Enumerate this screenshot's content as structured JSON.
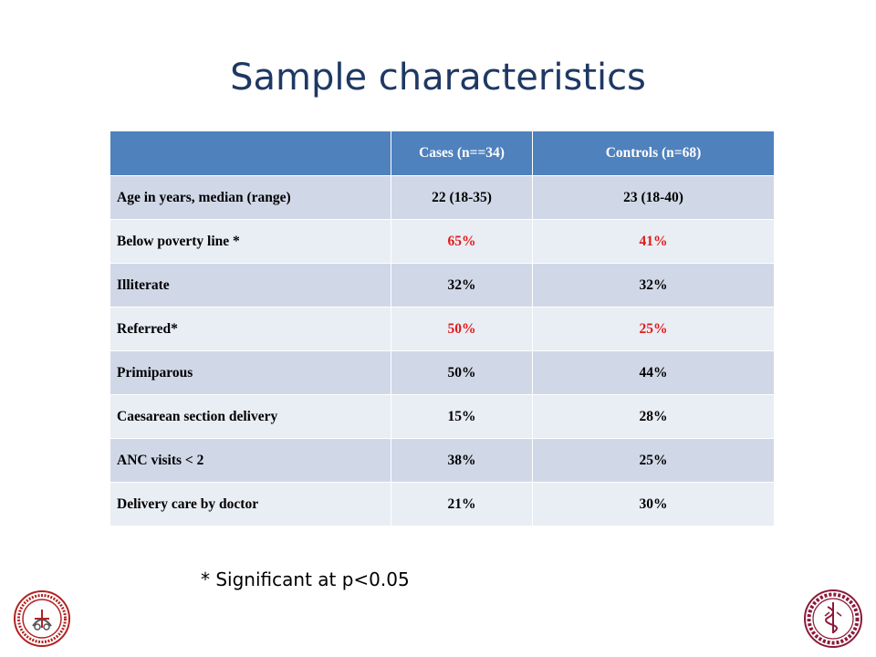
{
  "title": "Sample characteristics",
  "table": {
    "headers": [
      "",
      "Cases (n==34)",
      "Controls (n=68)"
    ],
    "rows": [
      {
        "label": "Age in years, median (range)",
        "cases": "22 (18-35)",
        "controls": "23 (18-40)",
        "significant": false
      },
      {
        "label": "Below poverty line *",
        "cases": "65%",
        "controls": "41%",
        "significant": true
      },
      {
        "label": "Illiterate",
        "cases": "32%",
        "controls": "32%",
        "significant": false
      },
      {
        "label": "Referred*",
        "cases": "50%",
        "controls": "25%",
        "significant": true
      },
      {
        "label": "Primiparous",
        "cases": "50%",
        "controls": "44%",
        "significant": false
      },
      {
        "label": "Caesarean section delivery",
        "cases": "15%",
        "controls": "28%",
        "significant": false
      },
      {
        "label": "ANC visits < 2",
        "cases": "38%",
        "controls": "25%",
        "significant": false
      },
      {
        "label": "Delivery care by doctor",
        "cases": "21%",
        "controls": "30%",
        "significant": false
      }
    ]
  },
  "footnote": "* Significant at p<0.05",
  "colors": {
    "title": "#1f3864",
    "header": "#4f81bd",
    "row_dark": "#d0d8e8",
    "row_light": "#e9edf4",
    "significant": "#e21a1a",
    "left_logo": "#b22222",
    "right_logo": "#8b1a3a"
  },
  "logos": {
    "left": "medical-college-seal",
    "right": "karolinska-institutet-seal"
  }
}
